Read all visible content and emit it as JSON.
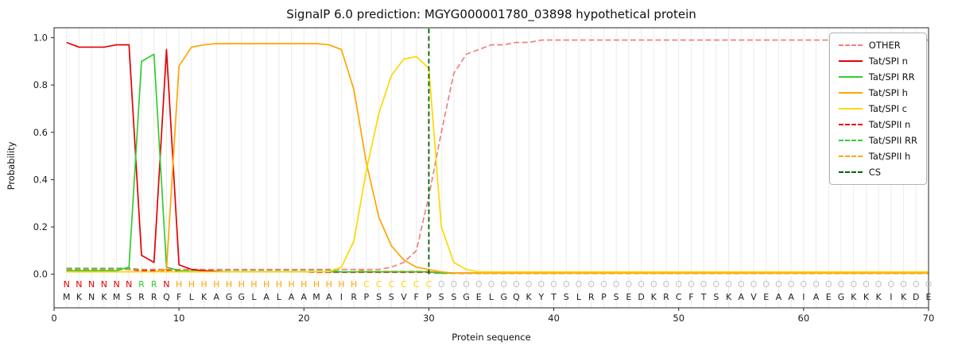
{
  "chart_data": {
    "type": "line",
    "title": "SignalP 6.0 prediction: MGYG000001780_03898 hypothetical protein",
    "xlabel": "Protein sequence",
    "ylabel": "Probability",
    "xlim": [
      0,
      70
    ],
    "ylim": [
      -0.14,
      1.04
    ],
    "x_ticks": [
      0,
      10,
      20,
      30,
      40,
      50,
      60,
      70
    ],
    "y_ticks": [
      0,
      0.2,
      0.4,
      0.6,
      0.8,
      1
    ],
    "grid": "light vertical gridline at every residue position",
    "legend_position": "upper right",
    "x": [
      1,
      2,
      3,
      4,
      5,
      6,
      7,
      8,
      9,
      10,
      11,
      12,
      13,
      14,
      15,
      16,
      17,
      18,
      19,
      20,
      21,
      22,
      23,
      24,
      25,
      26,
      27,
      28,
      29,
      30,
      31,
      32,
      33,
      34,
      35,
      36,
      37,
      38,
      39,
      40,
      41,
      42,
      43,
      44,
      45,
      46,
      47,
      48,
      49,
      50,
      51,
      52,
      53,
      54,
      55,
      56,
      57,
      58,
      59,
      60,
      61,
      62,
      63,
      64,
      65,
      66,
      67,
      68,
      69,
      70
    ],
    "series": [
      {
        "name": "OTHER",
        "color": "#f08080",
        "dash": true,
        "values": [
          0.02,
          0.02,
          0.02,
          0.02,
          0.02,
          0.02,
          0.02,
          0.02,
          0.02,
          0.02,
          0.02,
          0.02,
          0.02,
          0.02,
          0.02,
          0.02,
          0.02,
          0.02,
          0.02,
          0.02,
          0.02,
          0.02,
          0.02,
          0.02,
          0.02,
          0.02,
          0.03,
          0.05,
          0.1,
          0.33,
          0.6,
          0.85,
          0.93,
          0.95,
          0.97,
          0.97,
          0.98,
          0.98,
          0.99,
          0.99,
          0.99,
          0.99,
          0.99,
          0.99,
          0.99,
          0.99,
          0.99,
          0.99,
          0.99,
          0.99,
          0.99,
          0.99,
          0.99,
          0.99,
          0.99,
          0.99,
          0.99,
          0.99,
          0.99,
          0.99,
          0.99,
          0.99,
          0.99,
          0.99,
          0.99,
          0.99,
          0.99,
          0.99,
          0.99,
          0.99
        ]
      },
      {
        "name": "Tat/SPI n",
        "color": "#e50000",
        "dash": false,
        "values": [
          0.98,
          0.96,
          0.96,
          0.96,
          0.97,
          0.97,
          0.08,
          0.05,
          0.95,
          0.04,
          0.02,
          0.015,
          0.012,
          0.01,
          0.01,
          0.01,
          0.01,
          0.01,
          0.01,
          0.01,
          0.01,
          0.01,
          0.01,
          0.01,
          0.01,
          0.01,
          0.01,
          0.01,
          0.01,
          0.01,
          0.005,
          0.005,
          0.005,
          0.005,
          0.005,
          0.005,
          0.005,
          0.005,
          0.005,
          0.005,
          0.005,
          0.005,
          0.005,
          0.005,
          0.005,
          0.005,
          0.005,
          0.005,
          0.005,
          0.005,
          0.005,
          0.005,
          0.005,
          0.005,
          0.005,
          0.005,
          0.005,
          0.005,
          0.005,
          0.005,
          0.005,
          0.005,
          0.005,
          0.005,
          0.005,
          0.005,
          0.005,
          0.005,
          0.005,
          0.005
        ]
      },
      {
        "name": "Tat/SPI RR",
        "color": "#32cd32",
        "dash": false,
        "values": [
          0.015,
          0.015,
          0.015,
          0.015,
          0.015,
          0.03,
          0.9,
          0.93,
          0.03,
          0.015,
          0.012,
          0.01,
          0.01,
          0.01,
          0.01,
          0.01,
          0.01,
          0.01,
          0.01,
          0.01,
          0.01,
          0.01,
          0.01,
          0.01,
          0.01,
          0.01,
          0.01,
          0.01,
          0.01,
          0.01,
          0.005,
          0.005,
          0.005,
          0.005,
          0.005,
          0.005,
          0.005,
          0.005,
          0.005,
          0.005,
          0.005,
          0.005,
          0.005,
          0.005,
          0.005,
          0.005,
          0.005,
          0.005,
          0.005,
          0.005,
          0.005,
          0.005,
          0.005,
          0.005,
          0.005,
          0.005,
          0.005,
          0.005,
          0.005,
          0.005,
          0.005,
          0.005,
          0.005,
          0.005,
          0.005,
          0.005,
          0.005,
          0.005,
          0.005,
          0.005
        ]
      },
      {
        "name": "Tat/SPI h",
        "color": "#ffa500",
        "dash": false,
        "values": [
          0.01,
          0.01,
          0.01,
          0.01,
          0.01,
          0.01,
          0.01,
          0.01,
          0.02,
          0.88,
          0.96,
          0.97,
          0.975,
          0.975,
          0.975,
          0.975,
          0.975,
          0.975,
          0.975,
          0.975,
          0.975,
          0.97,
          0.95,
          0.78,
          0.47,
          0.24,
          0.12,
          0.06,
          0.03,
          0.02,
          0.01,
          0.005,
          0.005,
          0.005,
          0.005,
          0.005,
          0.005,
          0.005,
          0.005,
          0.005,
          0.005,
          0.005,
          0.005,
          0.005,
          0.005,
          0.005,
          0.005,
          0.005,
          0.005,
          0.005,
          0.005,
          0.005,
          0.005,
          0.005,
          0.005,
          0.005,
          0.005,
          0.005,
          0.005,
          0.005,
          0.005,
          0.005,
          0.005,
          0.005,
          0.005,
          0.005,
          0.005,
          0.005,
          0.005,
          0.005
        ]
      },
      {
        "name": "Tat/SPI c",
        "color": "#ffd700",
        "dash": false,
        "values": [
          0.01,
          0.01,
          0.01,
          0.01,
          0.01,
          0.01,
          0.01,
          0.01,
          0.01,
          0.01,
          0.01,
          0.01,
          0.01,
          0.01,
          0.01,
          0.01,
          0.01,
          0.01,
          0.01,
          0.01,
          0.01,
          0.01,
          0.03,
          0.14,
          0.44,
          0.68,
          0.84,
          0.91,
          0.92,
          0.87,
          0.2,
          0.05,
          0.02,
          0.01,
          0.01,
          0.01,
          0.01,
          0.01,
          0.01,
          0.01,
          0.01,
          0.01,
          0.01,
          0.01,
          0.01,
          0.01,
          0.01,
          0.01,
          0.01,
          0.01,
          0.01,
          0.01,
          0.01,
          0.01,
          0.01,
          0.01,
          0.01,
          0.01,
          0.01,
          0.01,
          0.01,
          0.01,
          0.01,
          0.01,
          0.01,
          0.01,
          0.01,
          0.01,
          0.01,
          0.01
        ]
      },
      {
        "name": "Tat/SPII n",
        "color": "#e50000",
        "dash": true,
        "values": [
          0.02,
          0.02,
          0.02,
          0.02,
          0.02,
          0.02,
          0.015,
          0.015,
          0.015,
          0.015,
          0.01,
          0.01,
          0.01,
          0.01,
          0.01,
          0.01,
          0.01,
          0.01,
          0.01,
          0.01,
          0.008,
          0.008,
          0.008,
          0.008,
          0.008,
          0.008,
          0.008,
          0.008,
          0.008,
          0.008,
          0.004,
          0.004,
          0.004,
          0.004,
          0.004,
          0.004,
          0.004,
          0.004,
          0.004,
          0.004,
          0.004,
          0.004,
          0.004,
          0.004,
          0.004,
          0.004,
          0.004,
          0.004,
          0.004,
          0.004,
          0.004,
          0.004,
          0.004,
          0.004,
          0.004,
          0.004,
          0.004,
          0.004,
          0.004,
          0.004,
          0.004,
          0.004,
          0.004,
          0.004,
          0.004,
          0.004,
          0.004,
          0.004,
          0.004,
          0.004
        ]
      },
      {
        "name": "Tat/SPII RR",
        "color": "#32cd32",
        "dash": true,
        "values": [
          0.025,
          0.025,
          0.025,
          0.025,
          0.025,
          0.025,
          0.02,
          0.02,
          0.02,
          0.02,
          0.018,
          0.018,
          0.018,
          0.018,
          0.018,
          0.018,
          0.018,
          0.018,
          0.018,
          0.018,
          0.018,
          0.018,
          0.01,
          0.01,
          0.01,
          0.01,
          0.01,
          0.01,
          0.01,
          0.01,
          0.004,
          0.004,
          0.004,
          0.004,
          0.004,
          0.004,
          0.004,
          0.004,
          0.004,
          0.004,
          0.004,
          0.004,
          0.004,
          0.004,
          0.004,
          0.004,
          0.004,
          0.004,
          0.004,
          0.004,
          0.004,
          0.004,
          0.004,
          0.004,
          0.004,
          0.004,
          0.004,
          0.004,
          0.004,
          0.004,
          0.004,
          0.004,
          0.004,
          0.004,
          0.004,
          0.004,
          0.004,
          0.004,
          0.004,
          0.004
        ]
      },
      {
        "name": "Tat/SPII h",
        "color": "#ffa500",
        "dash": true,
        "values": [
          0.01,
          0.01,
          0.01,
          0.01,
          0.01,
          0.01,
          0.01,
          0.01,
          0.01,
          0.02,
          0.02,
          0.02,
          0.02,
          0.02,
          0.02,
          0.02,
          0.02,
          0.02,
          0.02,
          0.02,
          0.02,
          0.02,
          0.02,
          0.02,
          0.012,
          0.012,
          0.012,
          0.012,
          0.012,
          0.012,
          0.004,
          0.004,
          0.004,
          0.004,
          0.004,
          0.004,
          0.004,
          0.004,
          0.004,
          0.004,
          0.004,
          0.004,
          0.004,
          0.004,
          0.004,
          0.004,
          0.004,
          0.004,
          0.004,
          0.004,
          0.004,
          0.004,
          0.004,
          0.004,
          0.004,
          0.004,
          0.004,
          0.004,
          0.004,
          0.004,
          0.004,
          0.004,
          0.004,
          0.004,
          0.004,
          0.004,
          0.004,
          0.004,
          0.004,
          0.004
        ]
      }
    ],
    "cs": {
      "label": "CS",
      "position": 30,
      "color": "#006400"
    },
    "sequence": "MKNKMSRRQFLKAGGLALAAMAIRPSSVFPSSGELGQKYTSLRPSEDKRCFTSKAVEAAIAEGKKKIKDE",
    "regions": "NNNNNNRRNHHHHHHHHHHHHHHHCCCCCCOOOOOOOOOOOOOOOOOOOOOOOOOOOOOOOOOOOOOOOO",
    "region_colors": {
      "N": "#e50000",
      "R": "#32cd32",
      "H": "#ffa500",
      "C": "#ffd700",
      "O": "#c4c4c4"
    },
    "sequence_color": "#222222"
  }
}
